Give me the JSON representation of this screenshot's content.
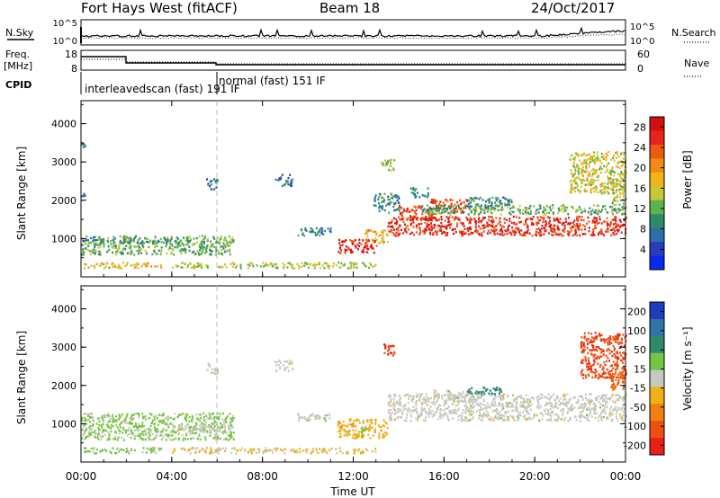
{
  "header": {
    "station": "Fort Hays West (fitACF)",
    "beam": "Beam 18",
    "date": "24/Oct/2017"
  },
  "strip": {
    "nsky_label": "N.Sky",
    "nsearch_label": "N.Search",
    "freq_label_line1": "Freq.",
    "freq_label_line2": "[MHz]",
    "nave_label": "Nave",
    "cpid_label": "CPID",
    "noise_left_ticks": [
      "10^5",
      "10^0"
    ],
    "noise_right_ticks": [
      "10^5",
      "10^0"
    ],
    "freq_left_ticks": [
      "18",
      "8"
    ],
    "nave_right_ticks": [
      "60",
      "0"
    ],
    "cpid_modes": [
      {
        "label": "interleavedscan (fast) 191 IF",
        "start_hour": 0
      },
      {
        "label": "normal (fast) 151 IF",
        "start_hour": 6
      }
    ]
  },
  "colors": {
    "power": [
      "#0a28f0",
      "#2a3db8",
      "#2f6fa8",
      "#2f8a6a",
      "#5cb24b",
      "#c6c83a",
      "#f1b21a",
      "#f08a12",
      "#ee5a12",
      "#e8231a",
      "#d40f10"
    ],
    "velocity": [
      "#1f3bbf",
      "#2f73a8",
      "#2f8a6a",
      "#76c443",
      "#c8c8c0",
      "#f0b018",
      "#f08010",
      "#ec5010",
      "#e82018"
    ],
    "grid_dash": "#bbbbbb"
  },
  "chart_data": [
    {
      "type": "heatmap",
      "name": "power",
      "ylabel": "Slant Range [km]",
      "yticks": [
        "1000",
        "2000",
        "3000",
        "4000"
      ],
      "ylim": [
        0,
        4600
      ],
      "xlim": [
        0,
        24
      ],
      "colorbar_label": "Power [dB]",
      "colorbar_ticks": [
        "4",
        "8",
        "12",
        "16",
        "20",
        "24",
        "28"
      ],
      "colorbar_range": [
        0,
        30
      ],
      "regions": [
        {
          "x": [
            0.0,
            6.7
          ],
          "r": [
            600,
            1100
          ],
          "v": 12
        },
        {
          "x": [
            0.0,
            4.5
          ],
          "r": [
            900,
            1000
          ],
          "v": 9
        },
        {
          "x": [
            0.1,
            3.5
          ],
          "r": [
            250,
            400
          ],
          "v": 17
        },
        {
          "x": [
            4.0,
            13.0
          ],
          "r": [
            250,
            400
          ],
          "v": 15
        },
        {
          "x": [
            11.3,
            13.0
          ],
          "r": [
            650,
            1000
          ],
          "v": 27
        },
        {
          "x": [
            12.5,
            13.5
          ],
          "r": [
            900,
            1250
          ],
          "v": 18
        },
        {
          "x": [
            12.8,
            14.0
          ],
          "r": [
            1700,
            2200
          ],
          "v": 9
        },
        {
          "x": [
            13.2,
            13.8
          ],
          "r": [
            2800,
            3100
          ],
          "v": 14
        },
        {
          "x": [
            13.5,
            24.0
          ],
          "r": [
            1100,
            1600
          ],
          "v": 26
        },
        {
          "x": [
            14.0,
            15.5
          ],
          "r": [
            1500,
            1900
          ],
          "v": 25
        },
        {
          "x": [
            15.3,
            17.0
          ],
          "r": [
            1700,
            2050
          ],
          "v": 24
        },
        {
          "x": [
            15.0,
            24.0
          ],
          "r": [
            1650,
            1900
          ],
          "v": 12
        },
        {
          "x": [
            17.0,
            19.0
          ],
          "r": [
            1800,
            2100
          ],
          "v": 9
        },
        {
          "x": [
            14.5,
            15.3
          ],
          "r": [
            2100,
            2350
          ],
          "v": 8
        },
        {
          "x": [
            8.5,
            9.3
          ],
          "r": [
            2400,
            2700
          ],
          "v": 8
        },
        {
          "x": [
            5.5,
            6.0
          ],
          "r": [
            2300,
            2600
          ],
          "v": 7
        },
        {
          "x": [
            21.5,
            24.0
          ],
          "r": [
            2200,
            3300
          ],
          "v": 16
        },
        {
          "x": [
            23.3,
            24.0
          ],
          "r": [
            1900,
            2600
          ],
          "v": 14
        },
        {
          "x": [
            0.0,
            0.2
          ],
          "r": [
            3400,
            3500
          ],
          "v": 8
        },
        {
          "x": [
            0.0,
            0.2
          ],
          "r": [
            2100,
            2200
          ],
          "v": 7
        },
        {
          "x": [
            9.5,
            11.0
          ],
          "r": [
            1100,
            1300
          ],
          "v": 8
        }
      ]
    },
    {
      "type": "heatmap",
      "name": "velocity",
      "ylabel": "Slant Range [km]",
      "yticks": [
        "1000",
        "2000",
        "3000",
        "4000"
      ],
      "ylim": [
        0,
        4600
      ],
      "xlim": [
        0,
        24
      ],
      "xlabel": "Time UT",
      "xticks": [
        "00:00",
        "04:00",
        "08:00",
        "12:00",
        "16:00",
        "20:00",
        "00:00"
      ],
      "colorbar_label": "Velocity [m s⁻¹]",
      "colorbar_ticks": [
        "200",
        "100",
        "50",
        "15",
        "-15",
        "-50",
        "-100",
        "-200"
      ],
      "colorbar_range": [
        -250,
        250
      ],
      "regions": [
        {
          "x": [
            0.0,
            6.7
          ],
          "r": [
            600,
            1300
          ],
          "v": 40
        },
        {
          "x": [
            4.0,
            6.7
          ],
          "r": [
            800,
            1000
          ],
          "v": 0
        },
        {
          "x": [
            0.1,
            3.5
          ],
          "r": [
            250,
            400
          ],
          "v": 40
        },
        {
          "x": [
            4.0,
            13.0
          ],
          "r": [
            250,
            400
          ],
          "v": -30
        },
        {
          "x": [
            11.3,
            13.5
          ],
          "r": [
            650,
            1150
          ],
          "v": -60
        },
        {
          "x": [
            12.3,
            12.5
          ],
          "r": [
            700,
            1100
          ],
          "v": 40
        },
        {
          "x": [
            13.2,
            13.8
          ],
          "r": [
            2800,
            3100
          ],
          "v": -200
        },
        {
          "x": [
            13.5,
            24.0
          ],
          "r": [
            1100,
            1800
          ],
          "v": 0
        },
        {
          "x": [
            15.5,
            17.5
          ],
          "r": [
            1600,
            1900
          ],
          "v": 0
        },
        {
          "x": [
            17.0,
            18.5
          ],
          "r": [
            1800,
            2000
          ],
          "v": 120
        },
        {
          "x": [
            8.5,
            9.3
          ],
          "r": [
            2400,
            2700
          ],
          "v": 0
        },
        {
          "x": [
            5.5,
            6.0
          ],
          "r": [
            2300,
            2600
          ],
          "v": 10
        },
        {
          "x": [
            22.0,
            24.0
          ],
          "r": [
            2200,
            3400
          ],
          "v": -180
        },
        {
          "x": [
            23.3,
            24.0
          ],
          "r": [
            1900,
            2600
          ],
          "v": -150
        },
        {
          "x": [
            9.5,
            11.0
          ],
          "r": [
            1100,
            1300
          ],
          "v": 10
        }
      ]
    }
  ]
}
